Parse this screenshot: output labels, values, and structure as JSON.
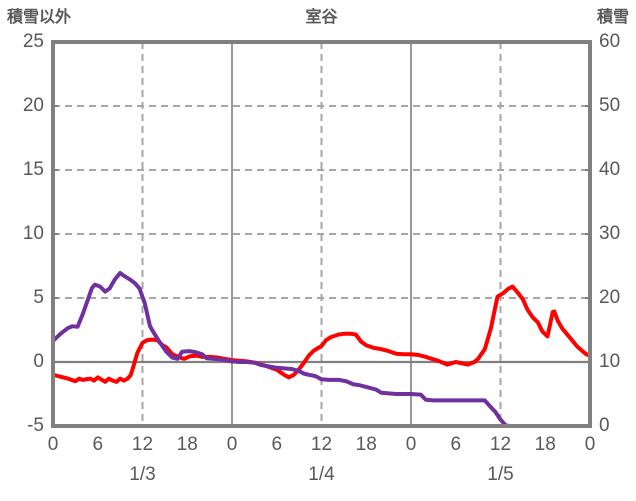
{
  "header": {
    "left_axis_title": "積雪以外",
    "title": "室谷",
    "right_axis_title": "積雪"
  },
  "chart_data": {
    "type": "line",
    "title": "室谷",
    "x_axis": {
      "unit": "hour",
      "range": [
        0,
        72
      ],
      "hour_ticks": [
        {
          "t": 0,
          "label": "0"
        },
        {
          "t": 6,
          "label": "6"
        },
        {
          "t": 12,
          "label": "12"
        },
        {
          "t": 18,
          "label": "18"
        },
        {
          "t": 24,
          "label": "0"
        },
        {
          "t": 30,
          "label": "6"
        },
        {
          "t": 36,
          "label": "12"
        },
        {
          "t": 42,
          "label": "18"
        },
        {
          "t": 48,
          "label": "0"
        },
        {
          "t": 54,
          "label": "6"
        },
        {
          "t": 60,
          "label": "12"
        },
        {
          "t": 66,
          "label": "18"
        },
        {
          "t": 72,
          "label": "0"
        }
      ],
      "day_labels": [
        {
          "t": 12,
          "label": "1/3"
        },
        {
          "t": 36,
          "label": "1/4"
        },
        {
          "t": 60,
          "label": "1/5"
        }
      ],
      "gridlines_dashed_at": [
        12,
        36,
        60
      ],
      "gridlines_solid_at": [
        24,
        48
      ]
    },
    "left_axis": {
      "title": "積雪以外",
      "range": [
        -5,
        25
      ],
      "ticks": [
        25,
        20,
        15,
        10,
        5,
        0,
        -5
      ],
      "zero_line": 0
    },
    "right_axis": {
      "title": "積雪",
      "range": [
        0,
        60
      ],
      "ticks": [
        60,
        50,
        40,
        30,
        20,
        10,
        0
      ]
    },
    "grid": {
      "horizontal_dashed_at_left_values": [
        20,
        15,
        10,
        5
      ],
      "legend": "none"
    },
    "style": {
      "border_color": "#808080",
      "gridline_color": "#a6a6a6",
      "zero_line_color": "#808080",
      "day_line_color": "#8c8c8c",
      "text_color": "#595959",
      "red_series_color": "#ff0000",
      "purple_series_color": "#7030a0"
    },
    "series": [
      {
        "name": "red",
        "axis": "left",
        "color": "#ff0000",
        "points": [
          [
            0,
            -1.0
          ],
          [
            1,
            -1.15
          ],
          [
            2,
            -1.3
          ],
          [
            3,
            -1.5
          ],
          [
            3.5,
            -1.3
          ],
          [
            4,
            -1.4
          ],
          [
            5,
            -1.3
          ],
          [
            5.5,
            -1.45
          ],
          [
            6,
            -1.2
          ],
          [
            7,
            -1.55
          ],
          [
            7.5,
            -1.3
          ],
          [
            8,
            -1.45
          ],
          [
            8.5,
            -1.55
          ],
          [
            9,
            -1.3
          ],
          [
            9.5,
            -1.45
          ],
          [
            10,
            -1.3
          ],
          [
            10.4,
            -1.05
          ],
          [
            10.8,
            -0.3
          ],
          [
            11.3,
            0.7
          ],
          [
            12,
            1.5
          ],
          [
            12.6,
            1.7
          ],
          [
            13.3,
            1.75
          ],
          [
            14,
            1.7
          ],
          [
            14.6,
            1.35
          ],
          [
            15.2,
            1.15
          ],
          [
            16,
            0.6
          ],
          [
            17,
            0.35
          ],
          [
            17.6,
            0.25
          ],
          [
            18.4,
            0.45
          ],
          [
            19.3,
            0.5
          ],
          [
            20,
            0.4
          ],
          [
            21,
            0.4
          ],
          [
            22,
            0.35
          ],
          [
            23,
            0.25
          ],
          [
            24,
            0.15
          ],
          [
            25,
            0.1
          ],
          [
            26,
            0.05
          ],
          [
            27,
            -0.05
          ],
          [
            28,
            -0.2
          ],
          [
            29,
            -0.4
          ],
          [
            30,
            -0.6
          ],
          [
            31,
            -1.0
          ],
          [
            31.6,
            -1.2
          ],
          [
            32.3,
            -1.0
          ],
          [
            33,
            -0.55
          ],
          [
            33.6,
            -0.1
          ],
          [
            34.3,
            0.5
          ],
          [
            35,
            0.9
          ],
          [
            36,
            1.25
          ],
          [
            36.6,
            1.7
          ],
          [
            37.3,
            1.95
          ],
          [
            38.3,
            2.15
          ],
          [
            39,
            2.2
          ],
          [
            40,
            2.2
          ],
          [
            40.6,
            2.15
          ],
          [
            41.3,
            1.6
          ],
          [
            42,
            1.3
          ],
          [
            43,
            1.1
          ],
          [
            44,
            1.0
          ],
          [
            45,
            0.85
          ],
          [
            46,
            0.65
          ],
          [
            47,
            0.6
          ],
          [
            48,
            0.6
          ],
          [
            49,
            0.55
          ],
          [
            50,
            0.4
          ],
          [
            50.5,
            0.3
          ],
          [
            51.6,
            0.1
          ],
          [
            52.9,
            -0.2
          ],
          [
            54,
            0.0
          ],
          [
            55.6,
            -0.2
          ],
          [
            56.5,
            0.0
          ],
          [
            57,
            0.25
          ],
          [
            57.9,
            1.0
          ],
          [
            58.7,
            2.6
          ],
          [
            59.6,
            5.1
          ],
          [
            60.4,
            5.4
          ],
          [
            61,
            5.7
          ],
          [
            61.6,
            5.9
          ],
          [
            62.2,
            5.5
          ],
          [
            63,
            4.9
          ],
          [
            63.6,
            4.1
          ],
          [
            64.3,
            3.5
          ],
          [
            65,
            3.1
          ],
          [
            65.6,
            2.4
          ],
          [
            66.3,
            2.0
          ],
          [
            67,
            3.9
          ],
          [
            67.2,
            3.95
          ],
          [
            67.7,
            3.2
          ],
          [
            68.3,
            2.6
          ],
          [
            69.3,
            1.9
          ],
          [
            70.3,
            1.2
          ],
          [
            71,
            0.85
          ],
          [
            71.5,
            0.6
          ],
          [
            72,
            0.5
          ]
        ]
      },
      {
        "name": "purple",
        "axis": "right",
        "color": "#7030a0",
        "points": [
          [
            0,
            13.3
          ],
          [
            1,
            14.4
          ],
          [
            2,
            15.3
          ],
          [
            2.6,
            15.6
          ],
          [
            3.3,
            15.5
          ],
          [
            4,
            17.5
          ],
          [
            4.6,
            19.5
          ],
          [
            5.2,
            21.5
          ],
          [
            5.6,
            22.1
          ],
          [
            6.3,
            21.8
          ],
          [
            7,
            21.0
          ],
          [
            7.6,
            21.5
          ],
          [
            8.3,
            22.9
          ],
          [
            9,
            23.9
          ],
          [
            9.6,
            23.4
          ],
          [
            10.3,
            22.9
          ],
          [
            11,
            22.3
          ],
          [
            11.6,
            21.5
          ],
          [
            12.3,
            19.2
          ],
          [
            13,
            15.6
          ],
          [
            13.6,
            14.4
          ],
          [
            14.3,
            13.1
          ],
          [
            15.2,
            11.6
          ],
          [
            16,
            10.7
          ],
          [
            16.7,
            10.5
          ],
          [
            17.3,
            11.6
          ],
          [
            18.3,
            11.7
          ],
          [
            19.2,
            11.5
          ],
          [
            20,
            11.2
          ],
          [
            20.6,
            10.6
          ],
          [
            21.5,
            10.5
          ],
          [
            23,
            10.3
          ],
          [
            24,
            10.1
          ],
          [
            25,
            10.0
          ],
          [
            26,
            10.0
          ],
          [
            27,
            9.9
          ],
          [
            28,
            9.5
          ],
          [
            29,
            9.3
          ],
          [
            30,
            9.1
          ],
          [
            31,
            9.0
          ],
          [
            32,
            8.9
          ],
          [
            33,
            8.6
          ],
          [
            33.6,
            8.2
          ],
          [
            34.3,
            8.0
          ],
          [
            35.2,
            7.8
          ],
          [
            36,
            7.3
          ],
          [
            37,
            7.2
          ],
          [
            38.3,
            7.2
          ],
          [
            39.3,
            7.0
          ],
          [
            40.3,
            6.5
          ],
          [
            41,
            6.4
          ],
          [
            42.3,
            6.0
          ],
          [
            43.3,
            5.7
          ],
          [
            44,
            5.2
          ],
          [
            45,
            5.1
          ],
          [
            46,
            5.0
          ],
          [
            48,
            5.0
          ],
          [
            49.3,
            4.9
          ],
          [
            50,
            4.1
          ],
          [
            51,
            4.0
          ],
          [
            57.9,
            4.0
          ],
          [
            58.5,
            3.2
          ],
          [
            59.3,
            2.2
          ],
          [
            60,
            1.0
          ],
          [
            60.7,
            0.1
          ],
          [
            61.3,
            0.0
          ],
          [
            72,
            0.0
          ]
        ]
      }
    ]
  }
}
